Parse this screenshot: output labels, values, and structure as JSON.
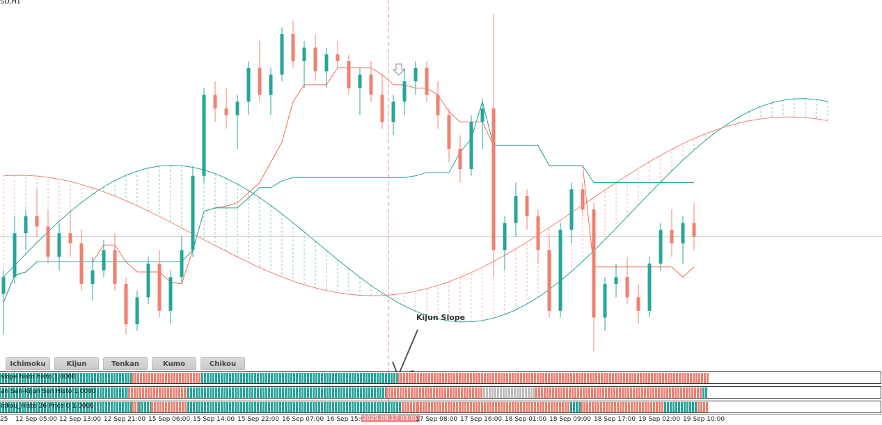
{
  "window": {
    "title": "SD,H1"
  },
  "colors": {
    "bull": "#26a69a",
    "bear": "#f08070",
    "kijun": "#1fa39a",
    "tenkan": "#f26b5b",
    "cursor": "#f08a8a",
    "gray_bar": "#bdbdbd"
  },
  "tabs": [
    "Ichimoku",
    "Kijun",
    "Tenkan",
    "Kumo",
    "Chikou"
  ],
  "annotation": {
    "text": "Kijun Slope"
  },
  "indicators": [
    {
      "label": "slope histo histo  1.0000"
    },
    {
      "label": "an Sen-Kijun Sen Histo 1.0000"
    },
    {
      "label": "inkou_Histo 26 Price 0  1.0000"
    }
  ],
  "time_axis": {
    "labels": [
      "25",
      "12 Sep 05:00",
      "12 Sep 13:00",
      "12 Sep 21:00",
      "15 Sep 06:00",
      "15 Sep 14:00",
      "15 Sep 22:00",
      "16 Sep 07:00",
      "16 Sep 15:00",
      "17 Sep 08:00",
      "17 Sep 16:00",
      "18 Sep 01:00",
      "18 Sep 09:00",
      "18 Sep 17:00",
      "19 Sep 02:00",
      "19 Sep 10:00"
    ],
    "cursor_label": "2025.09.17 03:00"
  },
  "chart_data": {
    "type": "candlestick",
    "title": "SD,H1",
    "price_range": [
      0,
      100
    ],
    "candles": [
      {
        "o": 17,
        "h": 24,
        "l": 5,
        "c": 22
      },
      {
        "o": 22,
        "h": 40,
        "l": 20,
        "c": 35
      },
      {
        "o": 35,
        "h": 42,
        "l": 30,
        "c": 40
      },
      {
        "o": 40,
        "h": 48,
        "l": 34,
        "c": 37
      },
      {
        "o": 37,
        "h": 42,
        "l": 26,
        "c": 28
      },
      {
        "o": 28,
        "h": 38,
        "l": 24,
        "c": 35
      },
      {
        "o": 35,
        "h": 42,
        "l": 28,
        "c": 32
      },
      {
        "o": 32,
        "h": 36,
        "l": 18,
        "c": 20
      },
      {
        "o": 20,
        "h": 28,
        "l": 15,
        "c": 24
      },
      {
        "o": 24,
        "h": 33,
        "l": 22,
        "c": 30
      },
      {
        "o": 30,
        "h": 35,
        "l": 18,
        "c": 20
      },
      {
        "o": 20,
        "h": 22,
        "l": 5,
        "c": 8
      },
      {
        "o": 8,
        "h": 18,
        "l": 6,
        "c": 16
      },
      {
        "o": 16,
        "h": 28,
        "l": 14,
        "c": 26
      },
      {
        "o": 26,
        "h": 30,
        "l": 10,
        "c": 12
      },
      {
        "o": 12,
        "h": 24,
        "l": 8,
        "c": 22
      },
      {
        "o": 22,
        "h": 34,
        "l": 20,
        "c": 30
      },
      {
        "o": 30,
        "h": 55,
        "l": 28,
        "c": 52
      },
      {
        "o": 52,
        "h": 78,
        "l": 50,
        "c": 76
      },
      {
        "o": 76,
        "h": 80,
        "l": 68,
        "c": 72
      },
      {
        "o": 72,
        "h": 78,
        "l": 66,
        "c": 70
      },
      {
        "o": 70,
        "h": 76,
        "l": 60,
        "c": 74
      },
      {
        "o": 74,
        "h": 86,
        "l": 70,
        "c": 84
      },
      {
        "o": 84,
        "h": 92,
        "l": 74,
        "c": 76
      },
      {
        "o": 76,
        "h": 84,
        "l": 70,
        "c": 82
      },
      {
        "o": 82,
        "h": 96,
        "l": 80,
        "c": 94
      },
      {
        "o": 94,
        "h": 98,
        "l": 84,
        "c": 86
      },
      {
        "o": 86,
        "h": 92,
        "l": 78,
        "c": 90
      },
      {
        "o": 90,
        "h": 94,
        "l": 80,
        "c": 83
      },
      {
        "o": 83,
        "h": 90,
        "l": 78,
        "c": 88
      },
      {
        "o": 88,
        "h": 92,
        "l": 84,
        "c": 86
      },
      {
        "o": 86,
        "h": 88,
        "l": 76,
        "c": 78
      },
      {
        "o": 78,
        "h": 84,
        "l": 70,
        "c": 82
      },
      {
        "o": 82,
        "h": 86,
        "l": 74,
        "c": 76
      },
      {
        "o": 76,
        "h": 82,
        "l": 66,
        "c": 68
      },
      {
        "o": 68,
        "h": 76,
        "l": 64,
        "c": 74
      },
      {
        "o": 74,
        "h": 84,
        "l": 70,
        "c": 80
      },
      {
        "o": 80,
        "h": 86,
        "l": 76,
        "c": 84
      },
      {
        "o": 84,
        "h": 86,
        "l": 74,
        "c": 76
      },
      {
        "o": 76,
        "h": 80,
        "l": 66,
        "c": 70
      },
      {
        "o": 70,
        "h": 72,
        "l": 56,
        "c": 60
      },
      {
        "o": 60,
        "h": 64,
        "l": 50,
        "c": 54
      },
      {
        "o": 54,
        "h": 70,
        "l": 52,
        "c": 68
      },
      {
        "o": 68,
        "h": 75,
        "l": 60,
        "c": 72
      },
      {
        "o": 72,
        "h": 100,
        "l": 22,
        "c": 30
      },
      {
        "o": 30,
        "h": 40,
        "l": 24,
        "c": 38
      },
      {
        "o": 38,
        "h": 50,
        "l": 34,
        "c": 46
      },
      {
        "o": 46,
        "h": 48,
        "l": 36,
        "c": 40
      },
      {
        "o": 40,
        "h": 42,
        "l": 26,
        "c": 30
      },
      {
        "o": 30,
        "h": 34,
        "l": 10,
        "c": 12
      },
      {
        "o": 12,
        "h": 38,
        "l": 10,
        "c": 36
      },
      {
        "o": 36,
        "h": 50,
        "l": 32,
        "c": 48
      },
      {
        "o": 48,
        "h": 50,
        "l": 40,
        "c": 42
      },
      {
        "o": 42,
        "h": 44,
        "l": 0,
        "c": 10
      },
      {
        "o": 10,
        "h": 22,
        "l": 6,
        "c": 20
      },
      {
        "o": 20,
        "h": 26,
        "l": 16,
        "c": 22
      },
      {
        "o": 22,
        "h": 28,
        "l": 14,
        "c": 16
      },
      {
        "o": 16,
        "h": 20,
        "l": 8,
        "c": 12
      },
      {
        "o": 12,
        "h": 28,
        "l": 10,
        "c": 26
      },
      {
        "o": 26,
        "h": 38,
        "l": 24,
        "c": 36
      },
      {
        "o": 36,
        "h": 42,
        "l": 28,
        "c": 32
      },
      {
        "o": 32,
        "h": 40,
        "l": 26,
        "c": 38
      },
      {
        "o": 38,
        "h": 44,
        "l": 30,
        "c": 34
      }
    ]
  }
}
